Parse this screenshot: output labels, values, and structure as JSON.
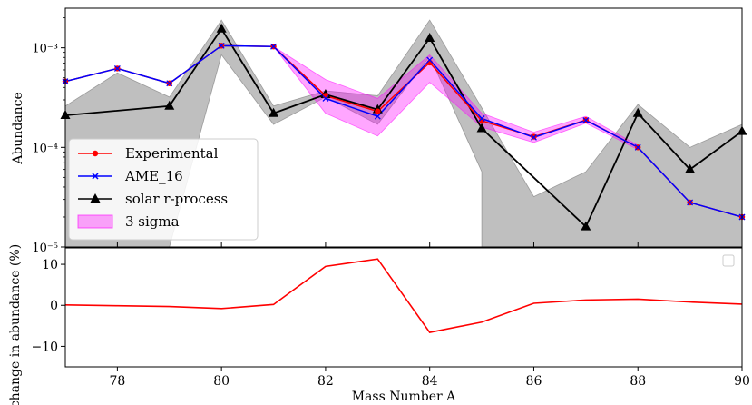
{
  "chart_data": [
    {
      "type": "line",
      "ylabel": "Abundance",
      "yscale": "log",
      "xlim": [
        77,
        90
      ],
      "ylim": [
        1e-05,
        0.0025
      ],
      "y_tick_labels": [
        "10⁻⁵",
        "10⁻⁴",
        "10⁻³"
      ],
      "grid": false,
      "legend_position": "lower-left",
      "series": [
        {
          "name": "Experimental",
          "color": "#ff0000",
          "marker": "circle",
          "x": [
            77,
            78,
            79,
            80,
            81,
            82,
            83,
            84,
            85,
            86,
            87,
            88,
            89,
            90
          ],
          "y": [
            0.00046,
            0.00062,
            0.00044,
            0.00105,
            0.00103,
            0.00033,
            0.00023,
            0.00071,
            0.000185,
            0.000128,
            0.000188,
            0.0001,
            2.8e-05,
            2e-05
          ]
        },
        {
          "name": "AME_16",
          "color": "#0000ff",
          "marker": "x",
          "x": [
            77,
            78,
            79,
            80,
            81,
            82,
            83,
            84,
            85,
            86,
            87,
            88,
            89,
            90
          ],
          "y": [
            0.00046,
            0.00062,
            0.00044,
            0.00105,
            0.00103,
            0.00031,
            0.000205,
            0.000755,
            0.000195,
            0.000126,
            0.000187,
            0.0001,
            2.8e-05,
            2e-05
          ]
        },
        {
          "name": "solar r-process",
          "color": "#000000",
          "marker": "triangle",
          "x": [
            77,
            79,
            80,
            81,
            82,
            83,
            84,
            85,
            87,
            88,
            89,
            90
          ],
          "y": [
            0.00021,
            0.00026,
            0.00155,
            0.00022,
            0.00034,
            0.00024,
            0.00125,
            0.000155,
            1.6e-05,
            0.00022,
            6e-05,
            0.000145
          ]
        }
      ],
      "bands": [
        {
          "name": "3 sigma",
          "color": "#ff00ff",
          "alpha": 0.35,
          "x": [
            81,
            82,
            83,
            84,
            85,
            86,
            87,
            88
          ],
          "lower": [
            0.00103,
            0.00022,
            0.00013,
            0.00045,
            0.00016,
            0.000112,
            0.000175,
            9.5e-05
          ],
          "upper": [
            0.00103,
            0.00048,
            0.00031,
            0.00085,
            0.00022,
            0.000142,
            0.000205,
            0.000105
          ]
        },
        {
          "name": "",
          "color": "#808080",
          "alpha": 0.5,
          "x": [
            77,
            78,
            79,
            80,
            81,
            82,
            83,
            84,
            85,
            85,
            86,
            87,
            88,
            89,
            90
          ],
          "lower": [
            1e-05,
            1e-05,
            1e-05,
            0.00085,
            0.00017,
            0.00032,
            0.00017,
            0.00082,
            5.7e-05,
            1e-05,
            1e-05,
            1e-05,
            1e-05,
            1e-05,
            1e-05
          ],
          "upper": [
            0.00026,
            0.00056,
            0.00032,
            0.0019,
            0.00026,
            0.00037,
            0.00033,
            0.0019,
            0.00025,
            0.00025,
            3.2e-05,
            5.7e-05,
            0.00027,
            0.0001,
            0.00017
          ]
        }
      ]
    },
    {
      "type": "line",
      "xlabel": "Mass Number A",
      "ylabel": "change in abundance (%)",
      "xlim": [
        77,
        90
      ],
      "ylim": [
        -15,
        14
      ],
      "x_ticks": [
        78,
        80,
        82,
        84,
        86,
        88,
        90
      ],
      "y_ticks": [
        -10,
        0,
        10
      ],
      "grid": false,
      "legend_position": "top-right",
      "series": [
        {
          "name": "",
          "color": "#ff0000",
          "x": [
            77,
            78,
            79,
            80,
            81,
            82,
            83,
            84,
            85,
            86,
            87,
            88,
            89,
            90
          ],
          "y": [
            0.1,
            -0.1,
            -0.3,
            -0.8,
            0.2,
            9.5,
            11.3,
            -6.6,
            -4.1,
            0.5,
            1.3,
            1.5,
            0.8,
            0.3
          ]
        }
      ]
    }
  ]
}
